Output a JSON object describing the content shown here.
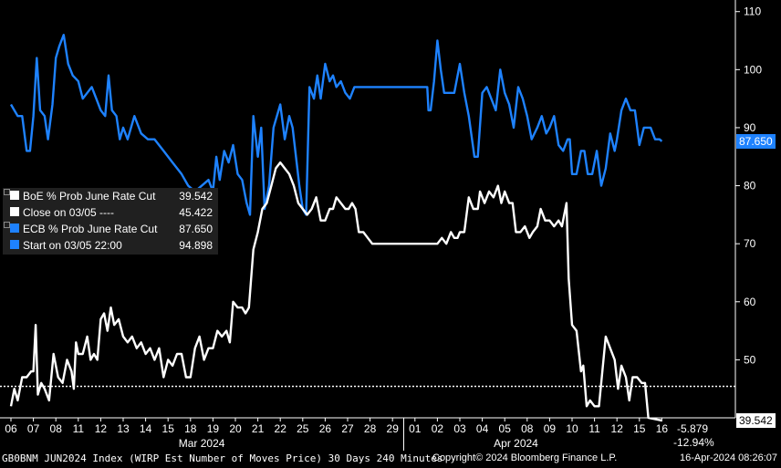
{
  "chart_data": {
    "type": "line",
    "y_axis": {
      "position": "right",
      "min": 40,
      "max": 112,
      "ticks": [
        50,
        60,
        70,
        80,
        90,
        100,
        110
      ]
    },
    "x_axis": {
      "day_labels": [
        "06",
        "07",
        "08",
        "11",
        "12",
        "13",
        "14",
        "15",
        "18",
        "19",
        "20",
        "21",
        "22",
        "25",
        "26",
        "27",
        "28",
        "29",
        "01",
        "02",
        "03",
        "04",
        "05",
        "08",
        "09",
        "10",
        "11",
        "12",
        "15",
        "16"
      ],
      "month_labels": [
        {
          "label": "Mar 2024",
          "center_index": 8.5
        },
        {
          "label": "Apr 2024",
          "center_index": 22.5
        }
      ],
      "month_divider_index": 17.5
    },
    "reference_line": {
      "value": 45.422,
      "style": "dotted"
    },
    "series": [
      {
        "name": "ECB % Prob June Rate Cut",
        "color": "#1e82ff",
        "last_label": "87.650",
        "values": [
          [
            0,
            94
          ],
          [
            0.15,
            93
          ],
          [
            0.3,
            92
          ],
          [
            0.5,
            92
          ],
          [
            0.7,
            86
          ],
          [
            0.85,
            86
          ],
          [
            1,
            92
          ],
          [
            1.15,
            102
          ],
          [
            1.3,
            93
          ],
          [
            1.5,
            92
          ],
          [
            1.65,
            88
          ],
          [
            1.85,
            94
          ],
          [
            2,
            102
          ],
          [
            2.15,
            104
          ],
          [
            2.35,
            106
          ],
          [
            2.55,
            101
          ],
          [
            2.75,
            99
          ],
          [
            3,
            98
          ],
          [
            3.2,
            95
          ],
          [
            3.4,
            96
          ],
          [
            3.6,
            97
          ],
          [
            3.8,
            95
          ],
          [
            4,
            93
          ],
          [
            4.2,
            92
          ],
          [
            4.35,
            99
          ],
          [
            4.5,
            93
          ],
          [
            4.7,
            92
          ],
          [
            4.85,
            88
          ],
          [
            5,
            90
          ],
          [
            5.2,
            88
          ],
          [
            5.5,
            92
          ],
          [
            5.8,
            89
          ],
          [
            6.1,
            88
          ],
          [
            6.4,
            88
          ],
          [
            6.8,
            86
          ],
          [
            7.2,
            84
          ],
          [
            7.6,
            82
          ],
          [
            7.9,
            80
          ],
          [
            8.2,
            79
          ],
          [
            8.5,
            80
          ],
          [
            8.8,
            81
          ],
          [
            9,
            79
          ],
          [
            9.15,
            85
          ],
          [
            9.3,
            81
          ],
          [
            9.5,
            86
          ],
          [
            9.7,
            84
          ],
          [
            9.9,
            87
          ],
          [
            10.1,
            82
          ],
          [
            10.3,
            81
          ],
          [
            10.5,
            77
          ],
          [
            10.65,
            75
          ],
          [
            10.8,
            92
          ],
          [
            11,
            85
          ],
          [
            11.15,
            90
          ],
          [
            11.3,
            76
          ],
          [
            11.5,
            80
          ],
          [
            11.7,
            90
          ],
          [
            11.85,
            92
          ],
          [
            12,
            94
          ],
          [
            12.2,
            88
          ],
          [
            12.4,
            92
          ],
          [
            12.55,
            90
          ],
          [
            12.7,
            85
          ],
          [
            12.85,
            80
          ],
          [
            13,
            76
          ],
          [
            13.15,
            75
          ],
          [
            13.3,
            97
          ],
          [
            13.5,
            95
          ],
          [
            13.65,
            99
          ],
          [
            13.8,
            95
          ],
          [
            14,
            101
          ],
          [
            14.2,
            98
          ],
          [
            14.35,
            99
          ],
          [
            14.5,
            97
          ],
          [
            14.7,
            98
          ],
          [
            14.9,
            96
          ],
          [
            15.1,
            95
          ],
          [
            15.3,
            97
          ],
          [
            15.6,
            97
          ],
          [
            16,
            97
          ],
          [
            16.5,
            97
          ],
          [
            17,
            97
          ],
          [
            17.5,
            97
          ],
          [
            18,
            97
          ],
          [
            18.3,
            97
          ],
          [
            18.55,
            97
          ],
          [
            18.6,
            93
          ],
          [
            18.7,
            93
          ],
          [
            18.85,
            98
          ],
          [
            19,
            105
          ],
          [
            19.15,
            100
          ],
          [
            19.3,
            96
          ],
          [
            19.5,
            96
          ],
          [
            19.75,
            96
          ],
          [
            20,
            101
          ],
          [
            20.2,
            96
          ],
          [
            20.4,
            92
          ],
          [
            20.65,
            85
          ],
          [
            20.8,
            85
          ],
          [
            21,
            96
          ],
          [
            21.2,
            97
          ],
          [
            21.4,
            95
          ],
          [
            21.6,
            93
          ],
          [
            21.8,
            100
          ],
          [
            22,
            96
          ],
          [
            22.2,
            94
          ],
          [
            22.4,
            90
          ],
          [
            22.6,
            97
          ],
          [
            22.8,
            95
          ],
          [
            23,
            92
          ],
          [
            23.2,
            88
          ],
          [
            23.45,
            90
          ],
          [
            23.65,
            92
          ],
          [
            23.85,
            89
          ],
          [
            24,
            90
          ],
          [
            24.2,
            92
          ],
          [
            24.4,
            87
          ],
          [
            24.6,
            86
          ],
          [
            24.8,
            88
          ],
          [
            24.9,
            88
          ],
          [
            25,
            82
          ],
          [
            25.2,
            82
          ],
          [
            25.4,
            86
          ],
          [
            25.55,
            86
          ],
          [
            25.7,
            82
          ],
          [
            25.9,
            82
          ],
          [
            26.1,
            86
          ],
          [
            26.3,
            80
          ],
          [
            26.5,
            83
          ],
          [
            26.7,
            89
          ],
          [
            26.9,
            86
          ],
          [
            27,
            88
          ],
          [
            27.2,
            93
          ],
          [
            27.4,
            95
          ],
          [
            27.6,
            93
          ],
          [
            27.8,
            93
          ],
          [
            28,
            87
          ],
          [
            28.2,
            90
          ],
          [
            28.5,
            90
          ],
          [
            28.7,
            88
          ],
          [
            28.9,
            88
          ],
          [
            29,
            87.65
          ]
        ]
      },
      {
        "name": "BoE % Prob June Rate Cut",
        "color": "#ffffff",
        "last_label": "39.542",
        "values": [
          [
            0,
            42
          ],
          [
            0.15,
            45
          ],
          [
            0.3,
            43
          ],
          [
            0.5,
            47
          ],
          [
            0.7,
            47
          ],
          [
            0.9,
            48
          ],
          [
            1,
            48
          ],
          [
            1.1,
            56
          ],
          [
            1.2,
            44
          ],
          [
            1.35,
            46
          ],
          [
            1.5,
            45
          ],
          [
            1.7,
            43
          ],
          [
            1.9,
            51
          ],
          [
            2.1,
            47
          ],
          [
            2.3,
            46
          ],
          [
            2.5,
            50
          ],
          [
            2.7,
            48
          ],
          [
            2.8,
            45
          ],
          [
            2.9,
            53
          ],
          [
            3,
            51
          ],
          [
            3.2,
            51
          ],
          [
            3.4,
            54
          ],
          [
            3.55,
            50
          ],
          [
            3.7,
            51
          ],
          [
            3.85,
            50
          ],
          [
            4,
            57
          ],
          [
            4.15,
            58
          ],
          [
            4.3,
            55
          ],
          [
            4.45,
            59
          ],
          [
            4.6,
            56
          ],
          [
            4.8,
            57
          ],
          [
            5,
            54
          ],
          [
            5.2,
            53
          ],
          [
            5.4,
            54
          ],
          [
            5.6,
            52
          ],
          [
            5.8,
            53
          ],
          [
            6,
            51
          ],
          [
            6.2,
            52
          ],
          [
            6.4,
            50
          ],
          [
            6.6,
            52
          ],
          [
            6.8,
            47
          ],
          [
            7,
            50
          ],
          [
            7.2,
            49
          ],
          [
            7.4,
            51
          ],
          [
            7.6,
            51
          ],
          [
            7.8,
            47
          ],
          [
            8,
            47
          ],
          [
            8.2,
            52
          ],
          [
            8.4,
            54
          ],
          [
            8.6,
            50
          ],
          [
            8.8,
            52
          ],
          [
            9,
            52
          ],
          [
            9.2,
            55
          ],
          [
            9.4,
            54
          ],
          [
            9.6,
            55
          ],
          [
            9.75,
            53
          ],
          [
            9.9,
            60
          ],
          [
            10.1,
            59
          ],
          [
            10.3,
            59
          ],
          [
            10.45,
            58
          ],
          [
            10.6,
            59
          ],
          [
            10.8,
            69
          ],
          [
            11,
            72
          ],
          [
            11.2,
            76
          ],
          [
            11.4,
            77
          ],
          [
            11.6,
            80
          ],
          [
            11.8,
            83
          ],
          [
            12,
            84
          ],
          [
            12.2,
            83
          ],
          [
            12.4,
            82
          ],
          [
            12.6,
            80
          ],
          [
            12.8,
            77
          ],
          [
            13,
            76
          ],
          [
            13.2,
            75
          ],
          [
            13.4,
            76
          ],
          [
            13.6,
            78
          ],
          [
            13.8,
            74
          ],
          [
            14,
            74
          ],
          [
            14.2,
            76
          ],
          [
            14.35,
            76
          ],
          [
            14.5,
            78
          ],
          [
            14.7,
            77
          ],
          [
            14.9,
            76
          ],
          [
            15.05,
            76
          ],
          [
            15.2,
            77
          ],
          [
            15.35,
            76
          ],
          [
            15.5,
            72
          ],
          [
            15.7,
            72
          ],
          [
            15.9,
            71
          ],
          [
            16.1,
            70
          ],
          [
            16.4,
            70
          ],
          [
            16.7,
            70
          ],
          [
            17,
            70
          ],
          [
            17.5,
            70
          ],
          [
            18,
            70
          ],
          [
            18.5,
            70
          ],
          [
            19,
            70
          ],
          [
            19.2,
            71
          ],
          [
            19.4,
            70
          ],
          [
            19.6,
            72
          ],
          [
            19.75,
            71
          ],
          [
            19.9,
            71
          ],
          [
            20,
            72
          ],
          [
            20.2,
            72
          ],
          [
            20.4,
            78
          ],
          [
            20.6,
            76
          ],
          [
            20.8,
            76
          ],
          [
            20.9,
            79
          ],
          [
            21.1,
            77
          ],
          [
            21.3,
            79
          ],
          [
            21.5,
            78
          ],
          [
            21.7,
            80
          ],
          [
            21.85,
            77
          ],
          [
            22,
            79
          ],
          [
            22.2,
            77
          ],
          [
            22.35,
            77
          ],
          [
            22.5,
            72
          ],
          [
            22.7,
            72
          ],
          [
            22.9,
            73
          ],
          [
            23.1,
            71
          ],
          [
            23.25,
            72
          ],
          [
            23.45,
            73
          ],
          [
            23.6,
            76
          ],
          [
            23.8,
            74
          ],
          [
            24,
            74
          ],
          [
            24.2,
            73
          ],
          [
            24.4,
            74
          ],
          [
            24.55,
            73
          ],
          [
            24.75,
            77
          ],
          [
            24.85,
            64
          ],
          [
            25,
            56
          ],
          [
            25.2,
            55
          ],
          [
            25.4,
            48
          ],
          [
            25.5,
            49
          ],
          [
            25.65,
            42
          ],
          [
            25.8,
            43
          ],
          [
            26,
            42
          ],
          [
            26.2,
            42
          ],
          [
            26.35,
            48
          ],
          [
            26.5,
            54
          ],
          [
            26.7,
            52
          ],
          [
            26.9,
            50
          ],
          [
            27.05,
            45
          ],
          [
            27.2,
            49
          ],
          [
            27.4,
            47
          ],
          [
            27.55,
            43
          ],
          [
            27.7,
            47
          ],
          [
            27.9,
            47
          ],
          [
            28.1,
            46
          ],
          [
            28.25,
            46
          ],
          [
            28.4,
            40
          ],
          [
            29,
            39.542
          ]
        ]
      }
    ]
  },
  "legend": {
    "rows": [
      {
        "label": "BoE % Prob June Rate Cut",
        "value": "39.542",
        "color": "#ffffff"
      },
      {
        "label": "Close on 03/05 ----",
        "value": "45.422",
        "color": "#ffffff"
      },
      {
        "label": "ECB % Prob June Rate Cut",
        "value": "87.650",
        "color": "#1e82ff"
      },
      {
        "label": "Start on 03/05 22:00",
        "value": "94.898",
        "color": "#1e82ff"
      }
    ]
  },
  "annotations": {
    "change_abs": "-5.879",
    "change_pct": "-12.94%"
  },
  "footer": {
    "left": "GB0BNM JUN2024 Index (WIRP Est Number of Moves Price) 30 Days 240 Minutes",
    "center": "Copyright© 2024 Bloomberg Finance L.P.",
    "right": "16-Apr-2024 08:26:07"
  }
}
